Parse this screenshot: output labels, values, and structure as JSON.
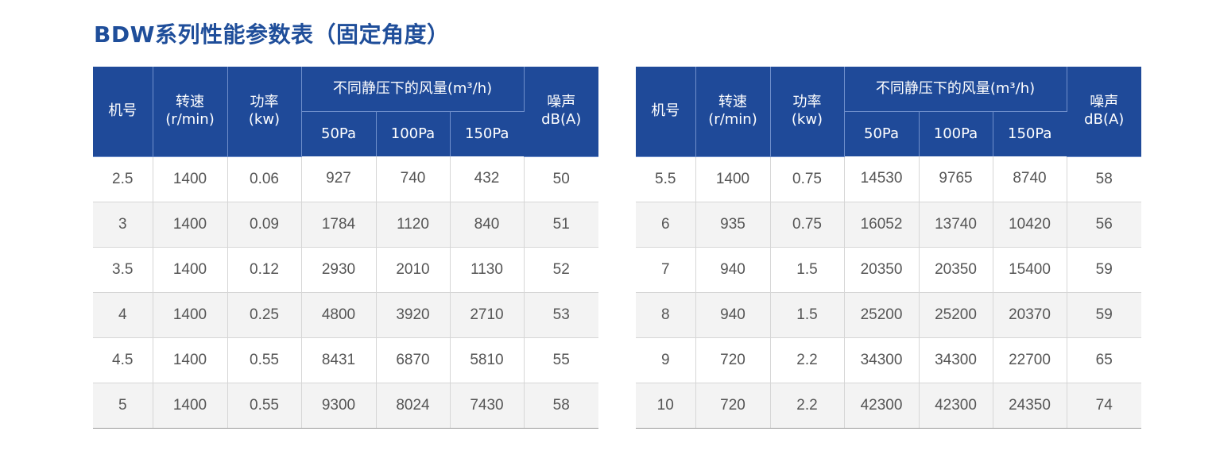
{
  "title": "BDW系列性能参数表（固定角度）",
  "headers": {
    "model": "机号",
    "speed_line1": "转速",
    "speed_line2": "(r/min)",
    "power_line1": "功率",
    "power_line2": "(kw)",
    "airflow": "不同静压下的风量(m³/h)",
    "noise_line1": "噪声",
    "noise_line2": "dB(A)",
    "p50": "50Pa",
    "p100": "100Pa",
    "p150": "150Pa"
  },
  "left_rows": [
    [
      "2.5",
      "1400",
      "0.06",
      "927",
      "740",
      "432",
      "50"
    ],
    [
      "3",
      "1400",
      "0.09",
      "1784",
      "1120",
      "840",
      "51"
    ],
    [
      "3.5",
      "1400",
      "0.12",
      "2930",
      "2010",
      "1130",
      "52"
    ],
    [
      "4",
      "1400",
      "0.25",
      "4800",
      "3920",
      "2710",
      "53"
    ],
    [
      "4.5",
      "1400",
      "0.55",
      "8431",
      "6870",
      "5810",
      "55"
    ],
    [
      "5",
      "1400",
      "0.55",
      "9300",
      "8024",
      "7430",
      "58"
    ]
  ],
  "right_rows": [
    [
      "5.5",
      "1400",
      "0.75",
      "14530",
      "9765",
      "8740",
      "58"
    ],
    [
      "6",
      "935",
      "0.75",
      "16052",
      "13740",
      "10420",
      "56"
    ],
    [
      "7",
      "940",
      "1.5",
      "20350",
      "20350",
      "15400",
      "59"
    ],
    [
      "8",
      "940",
      "1.5",
      "25200",
      "25200",
      "20370",
      "59"
    ],
    [
      "9",
      "720",
      "2.2",
      "34300",
      "34300",
      "22700",
      "65"
    ],
    [
      "10",
      "720",
      "2.2",
      "42300",
      "42300",
      "24350",
      "74"
    ]
  ]
}
